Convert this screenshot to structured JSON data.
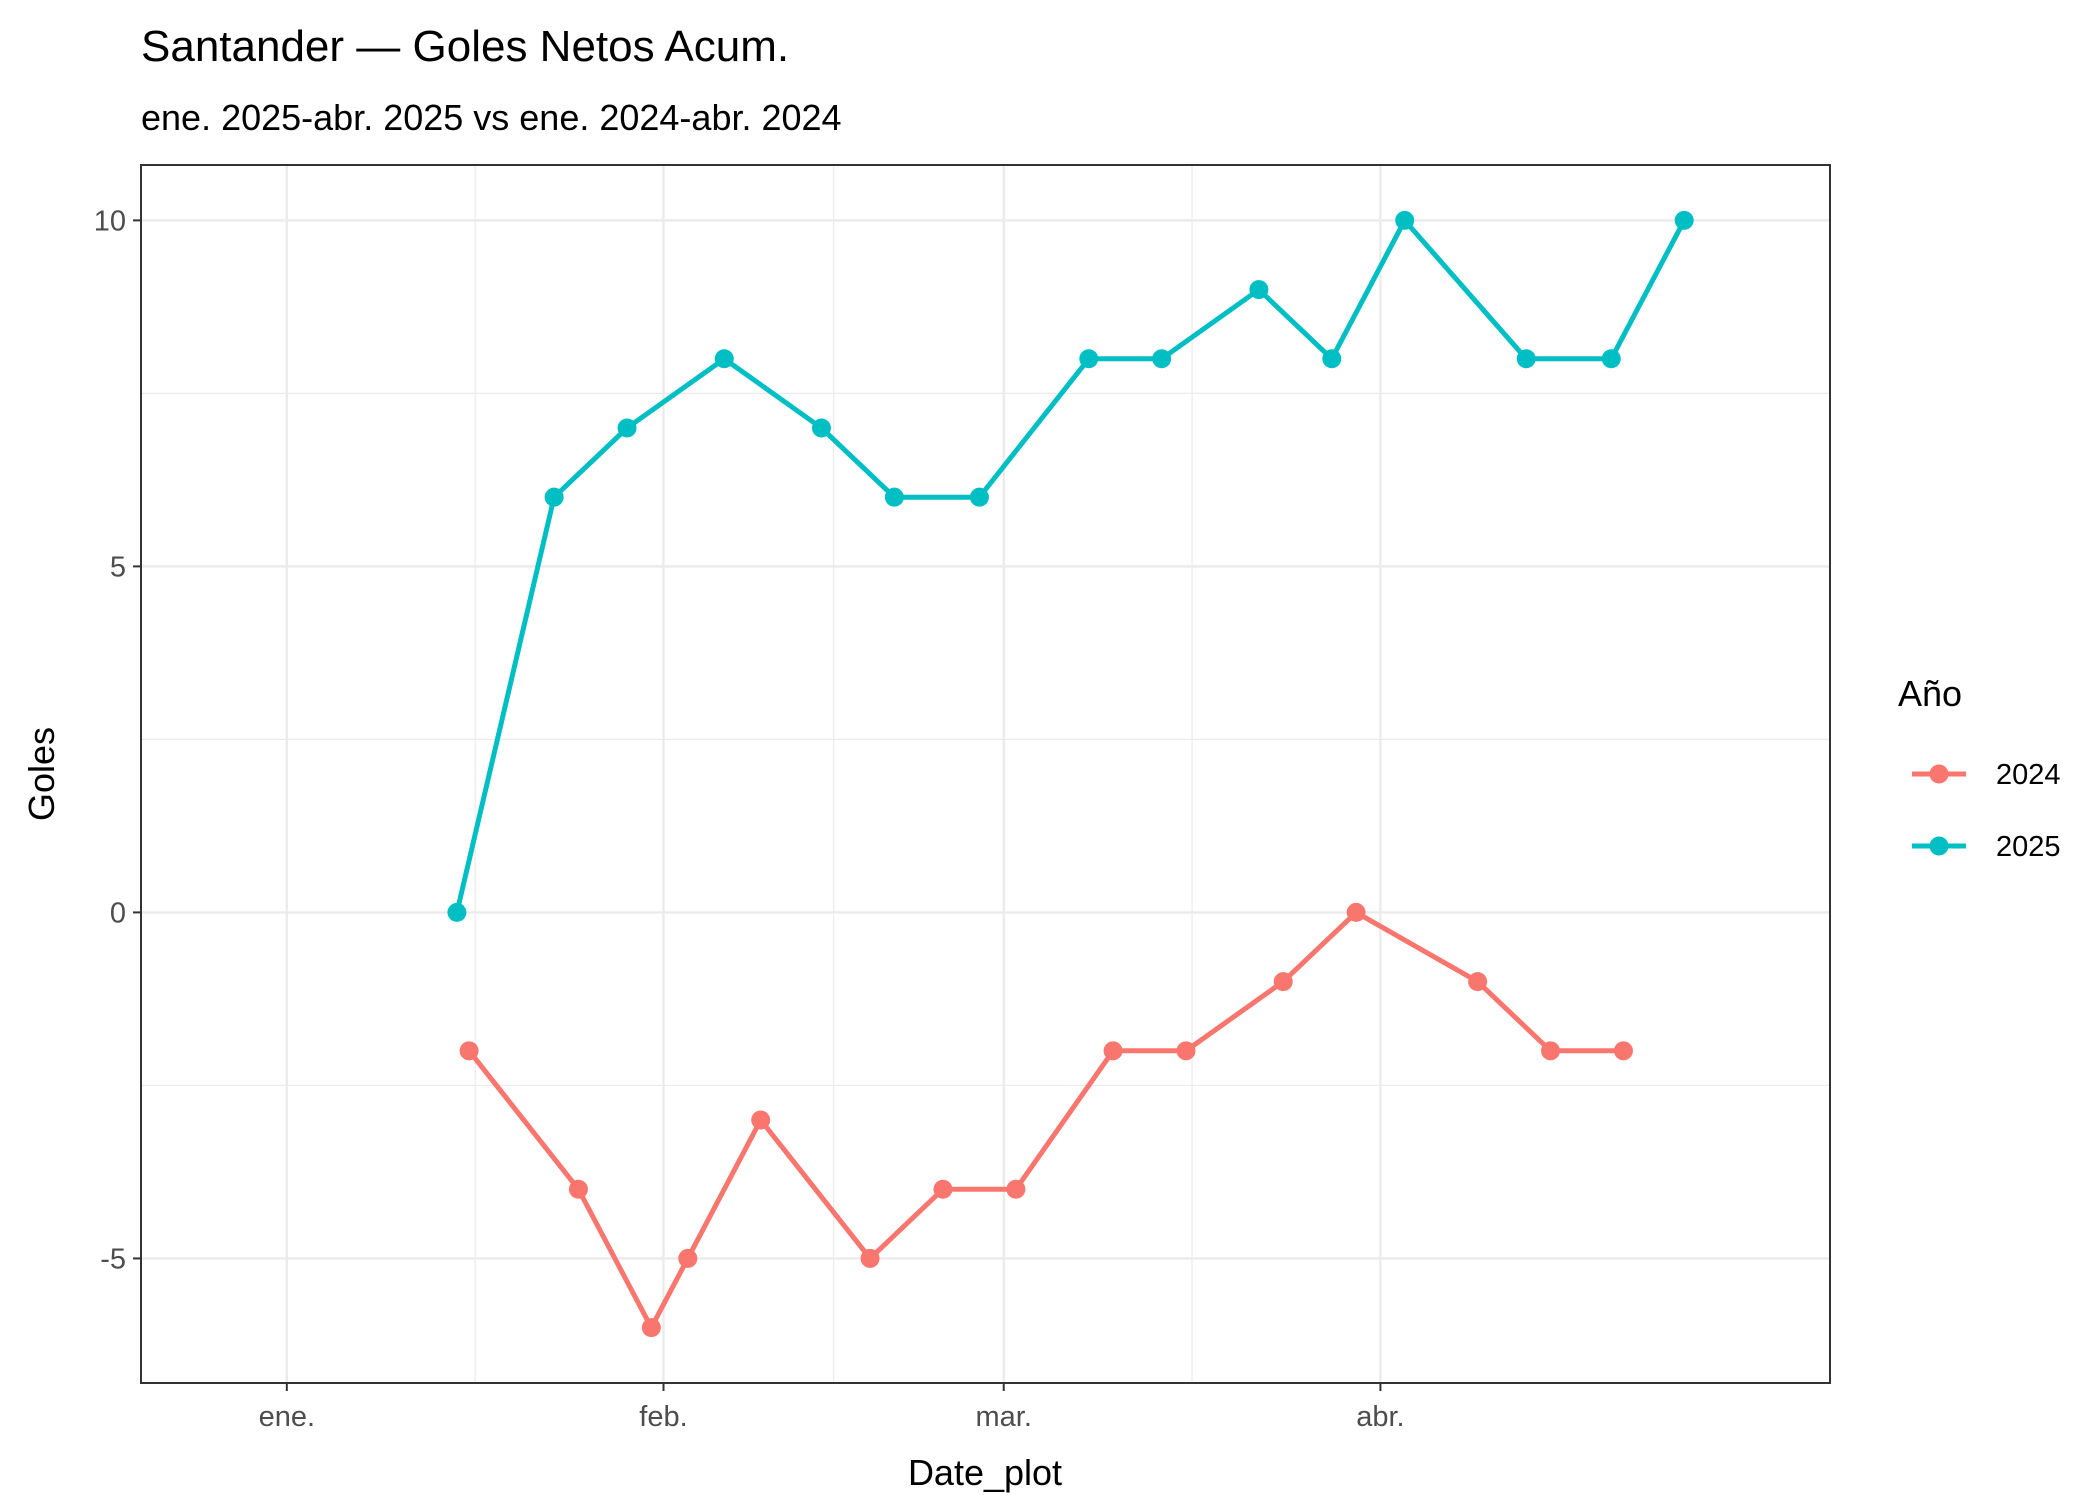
{
  "chart_data": {
    "type": "line",
    "title": "Santander — Goles Netos Acum.",
    "subtitle": "ene. 2025-abr. 2025 vs ene. 2024-abr. 2024",
    "xlabel": "Date_plot",
    "ylabel": "Goles",
    "x_ticks": [
      {
        "label": "ene.",
        "date": "2025-01-01"
      },
      {
        "label": "feb.",
        "date": "2025-02-01"
      },
      {
        "label": "mar.",
        "date": "2025-03-01"
      },
      {
        "label": "abr.",
        "date": "2025-04-01"
      }
    ],
    "y_ticks": [
      -5,
      0,
      5,
      10
    ],
    "xlim": [
      "2024-12-20",
      "2025-05-08"
    ],
    "ylim": [
      -6.8,
      10.8
    ],
    "grid": true,
    "legend": {
      "title": "Año",
      "position": "right"
    },
    "series": [
      {
        "name": "2024",
        "color": "#F8766D",
        "points": [
          {
            "x": "2025-01-16",
            "y": -2
          },
          {
            "x": "2025-01-25",
            "y": -4
          },
          {
            "x": "2025-01-31",
            "y": -6
          },
          {
            "x": "2025-02-03",
            "y": -5
          },
          {
            "x": "2025-02-09",
            "y": -3
          },
          {
            "x": "2025-02-18",
            "y": -5
          },
          {
            "x": "2025-02-24",
            "y": -4
          },
          {
            "x": "2025-03-02",
            "y": -4
          },
          {
            "x": "2025-03-10",
            "y": -2
          },
          {
            "x": "2025-03-16",
            "y": -2
          },
          {
            "x": "2025-03-24",
            "y": -1
          },
          {
            "x": "2025-03-30",
            "y": 0
          },
          {
            "x": "2025-04-09",
            "y": -1
          },
          {
            "x": "2025-04-15",
            "y": -2
          },
          {
            "x": "2025-04-21",
            "y": -2
          }
        ]
      },
      {
        "name": "2025",
        "color": "#00BFC4",
        "points": [
          {
            "x": "2025-01-15",
            "y": 0
          },
          {
            "x": "2025-01-23",
            "y": 6
          },
          {
            "x": "2025-01-29",
            "y": 7
          },
          {
            "x": "2025-02-06",
            "y": 8
          },
          {
            "x": "2025-02-14",
            "y": 7
          },
          {
            "x": "2025-02-20",
            "y": 6
          },
          {
            "x": "2025-02-27",
            "y": 6
          },
          {
            "x": "2025-03-08",
            "y": 8
          },
          {
            "x": "2025-03-14",
            "y": 8
          },
          {
            "x": "2025-03-22",
            "y": 9
          },
          {
            "x": "2025-03-28",
            "y": 8
          },
          {
            "x": "2025-04-03",
            "y": 10
          },
          {
            "x": "2025-04-13",
            "y": 8
          },
          {
            "x": "2025-04-20",
            "y": 8
          },
          {
            "x": "2025-04-26",
            "y": 10
          }
        ]
      }
    ]
  }
}
